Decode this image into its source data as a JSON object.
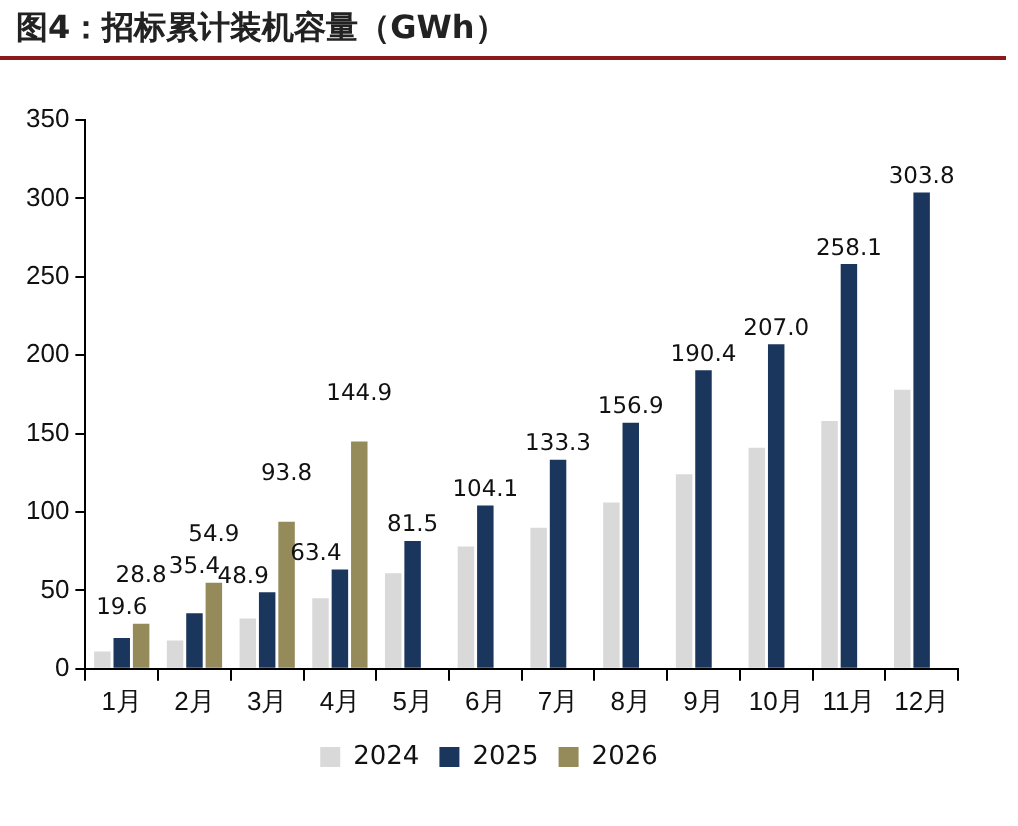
{
  "chart_data": {
    "type": "bar",
    "title": "图4：招标累计装机容量（GWh）",
    "categories": [
      "1月",
      "2月",
      "3月",
      "4月",
      "5月",
      "6月",
      "7月",
      "8月",
      "9月",
      "10月",
      "11月",
      "12月"
    ],
    "series": [
      {
        "name": "2024",
        "color": "#d9d9d9",
        "values": [
          11,
          18,
          32,
          45,
          61,
          78,
          90,
          106,
          124,
          141,
          158,
          178
        ]
      },
      {
        "name": "2025",
        "color": "#1b365d",
        "values": [
          19.6,
          35.4,
          48.9,
          63.4,
          81.5,
          104.1,
          133.3,
          156.9,
          190.4,
          207.0,
          258.1,
          303.8
        ],
        "value_labels": [
          "19.6",
          "35.4",
          "48.9",
          "63.4",
          "81.5",
          "104.1",
          "133.3",
          "156.9",
          "190.4",
          "207.0",
          "258.1",
          "303.8"
        ]
      },
      {
        "name": "2026",
        "color": "#958a5a",
        "values": [
          28.8,
          54.9,
          93.8,
          144.9,
          null,
          null,
          null,
          null,
          null,
          null,
          null,
          null
        ],
        "value_labels": [
          "28.8",
          "54.9",
          "93.8",
          "144.9",
          null,
          null,
          null,
          null,
          null,
          null,
          null,
          null
        ]
      }
    ],
    "ylim": [
      0,
      350
    ],
    "yticks": [
      0,
      50,
      100,
      150,
      200,
      250,
      300,
      350
    ],
    "grid": false,
    "legend": "bottom"
  }
}
